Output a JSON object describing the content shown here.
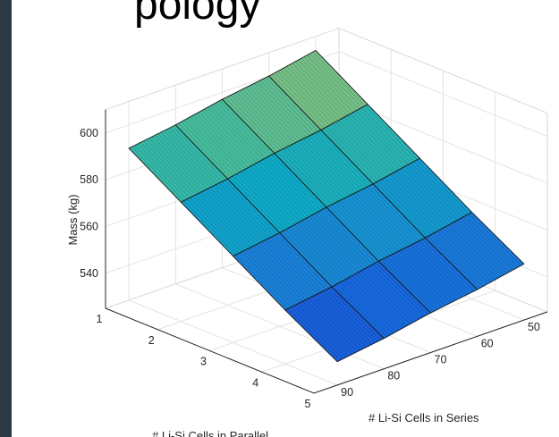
{
  "page": {
    "title_fragment": "pology"
  },
  "chart_data": {
    "type": "surface",
    "title": "",
    "xlabel": "# Li-Si Cells in Parallel",
    "ylabel": "# Li-Si Cells in Series",
    "zlabel": "Mass (kg)",
    "x_ticks": [
      "1",
      "2",
      "3",
      "4",
      "5"
    ],
    "y_ticks": [
      "50",
      "60",
      "70",
      "80",
      "90"
    ],
    "z_ticks": [
      "540",
      "560",
      "580",
      "600"
    ],
    "xlim": [
      1,
      5
    ],
    "ylim": [
      45,
      95
    ],
    "zlim": [
      525,
      610
    ],
    "grid": true,
    "colormap": "parula",
    "x": [
      1,
      2,
      3,
      4,
      5
    ],
    "y": [
      50,
      60,
      70,
      80,
      90
    ],
    "z": [
      [
        604,
        590,
        576,
        562,
        549
      ],
      [
        600,
        586,
        572,
        558,
        545
      ],
      [
        597,
        583,
        569,
        555,
        542
      ],
      [
        593,
        579,
        565,
        551,
        538
      ],
      [
        590,
        576,
        562,
        548,
        535
      ]
    ]
  }
}
